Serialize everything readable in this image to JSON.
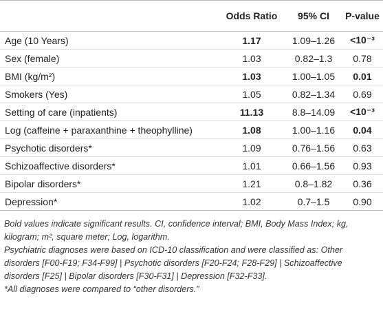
{
  "table": {
    "columns": [
      "",
      "Odds Ratio",
      "95% CI",
      "P-value"
    ],
    "rows": [
      {
        "cells": [
          "Age (10 Years)",
          "1.17",
          "1.09–1.26",
          "<10⁻³"
        ],
        "bold": true
      },
      {
        "cells": [
          "Sex (female)",
          "1.03",
          "0.82–1.3",
          "0.78"
        ],
        "bold": false
      },
      {
        "cells": [
          "BMI (kg/m²)",
          "1.03",
          "1.00–1.05",
          "0.01"
        ],
        "bold": true
      },
      {
        "cells": [
          "Smokers (Yes)",
          "1.05",
          "0.82–1.34",
          "0.69"
        ],
        "bold": false
      },
      {
        "cells": [
          "Setting of care (inpatients)",
          "11.13",
          "8.8–14.09",
          "<10⁻³"
        ],
        "bold": true
      },
      {
        "cells": [
          "Log (caffeine + paraxanthine + theophylline)",
          "1.08",
          "1.00–1.16",
          "0.04"
        ],
        "bold": true
      },
      {
        "cells": [
          "Psychotic disorders*",
          "1.09",
          "0.76–1.56",
          "0.63"
        ],
        "bold": false
      },
      {
        "cells": [
          "Schizoaffective disorders*",
          "1.01",
          "0.66–1.56",
          "0.93"
        ],
        "bold": false
      },
      {
        "cells": [
          "Bipolar disorders*",
          "1.21",
          "0.8–1.82",
          "0.36"
        ],
        "bold": false
      },
      {
        "cells": [
          "Depression*",
          "1.02",
          "0.7–1.5",
          "0.90"
        ],
        "bold": false
      }
    ]
  },
  "footnotes": [
    "Bold values indicate significant results. CI, confidence interval; BMI, Body Mass Index; kg, kilogram; m², square meter; Log, logarithm.",
    "Psychiatric diagnoses were based on ICD-10 classification and were classified as: Other disorders [F00-F19; F34-F99] | Psychotic disorders [F20-F24; F28-F29] | Schizoaffective disorders [F25] | Bipolar disorders [F30-F31] | Depression [F32-F33].",
    "*All diagnoses were compared to “other disorders.”"
  ]
}
